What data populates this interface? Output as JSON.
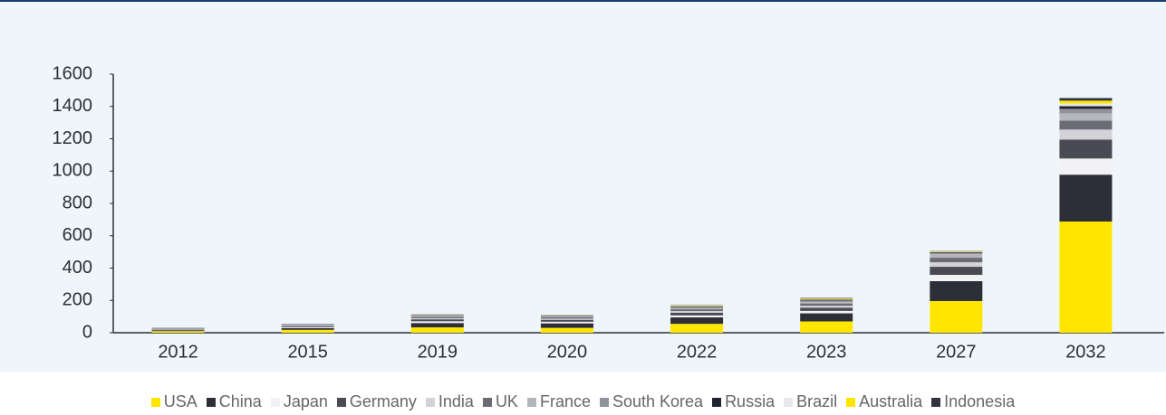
{
  "chart_data": {
    "type": "stacked_bar",
    "categories": [
      "2012",
      "2015",
      "2019",
      "2020",
      "2022",
      "2023",
      "2027",
      "2032"
    ],
    "series": [
      {
        "name": "USA",
        "color": "#ffe600",
        "values": [
          10,
          18,
          33,
          30,
          55,
          70,
          196,
          688
        ]
      },
      {
        "name": "China",
        "color": "#2e2e38",
        "values": [
          6,
          10,
          27,
          28,
          40,
          50,
          123,
          290
        ]
      },
      {
        "name": "Japan",
        "color": "#f2f2f4",
        "values": [
          4,
          6,
          11,
          10,
          12,
          15,
          39,
          100
        ]
      },
      {
        "name": "Germany",
        "color": "#4a4a55",
        "values": [
          4,
          6,
          12,
          12,
          17,
          20,
          50,
          117
        ]
      },
      {
        "name": "India",
        "color": "#d2d2d7",
        "values": [
          2,
          4,
          7,
          7,
          10,
          12,
          28,
          62
        ]
      },
      {
        "name": "UK",
        "color": "#6b6b76",
        "values": [
          2,
          4,
          8,
          8,
          11,
          14,
          28,
          56
        ]
      },
      {
        "name": "France",
        "color": "#b5b5bc",
        "values": [
          2,
          3,
          7,
          6,
          8,
          10,
          23,
          44
        ]
      },
      {
        "name": "South Korea",
        "color": "#92929c",
        "values": [
          1,
          2,
          4,
          4,
          6,
          8,
          7,
          28
        ]
      },
      {
        "name": "Russia",
        "color": "#23232f",
        "values": [
          0.5,
          1,
          2,
          2,
          4,
          5,
          4,
          17
        ]
      },
      {
        "name": "Brazil",
        "color": "#e8e8ea",
        "values": [
          0.2,
          0.5,
          2,
          1,
          2,
          3,
          2,
          16
        ]
      },
      {
        "name": "Australia",
        "color": "#ffe600",
        "values": [
          0.2,
          0.3,
          1,
          1,
          3,
          5,
          3,
          18
        ]
      },
      {
        "name": "Indonesia",
        "color": "#333340",
        "values": [
          0.1,
          0.2,
          1,
          1,
          2,
          3,
          2,
          16
        ]
      }
    ],
    "ylim": [
      0,
      1600
    ],
    "yticks": [
      0,
      200,
      400,
      600,
      800,
      1000,
      1200,
      1400,
      1600
    ]
  }
}
